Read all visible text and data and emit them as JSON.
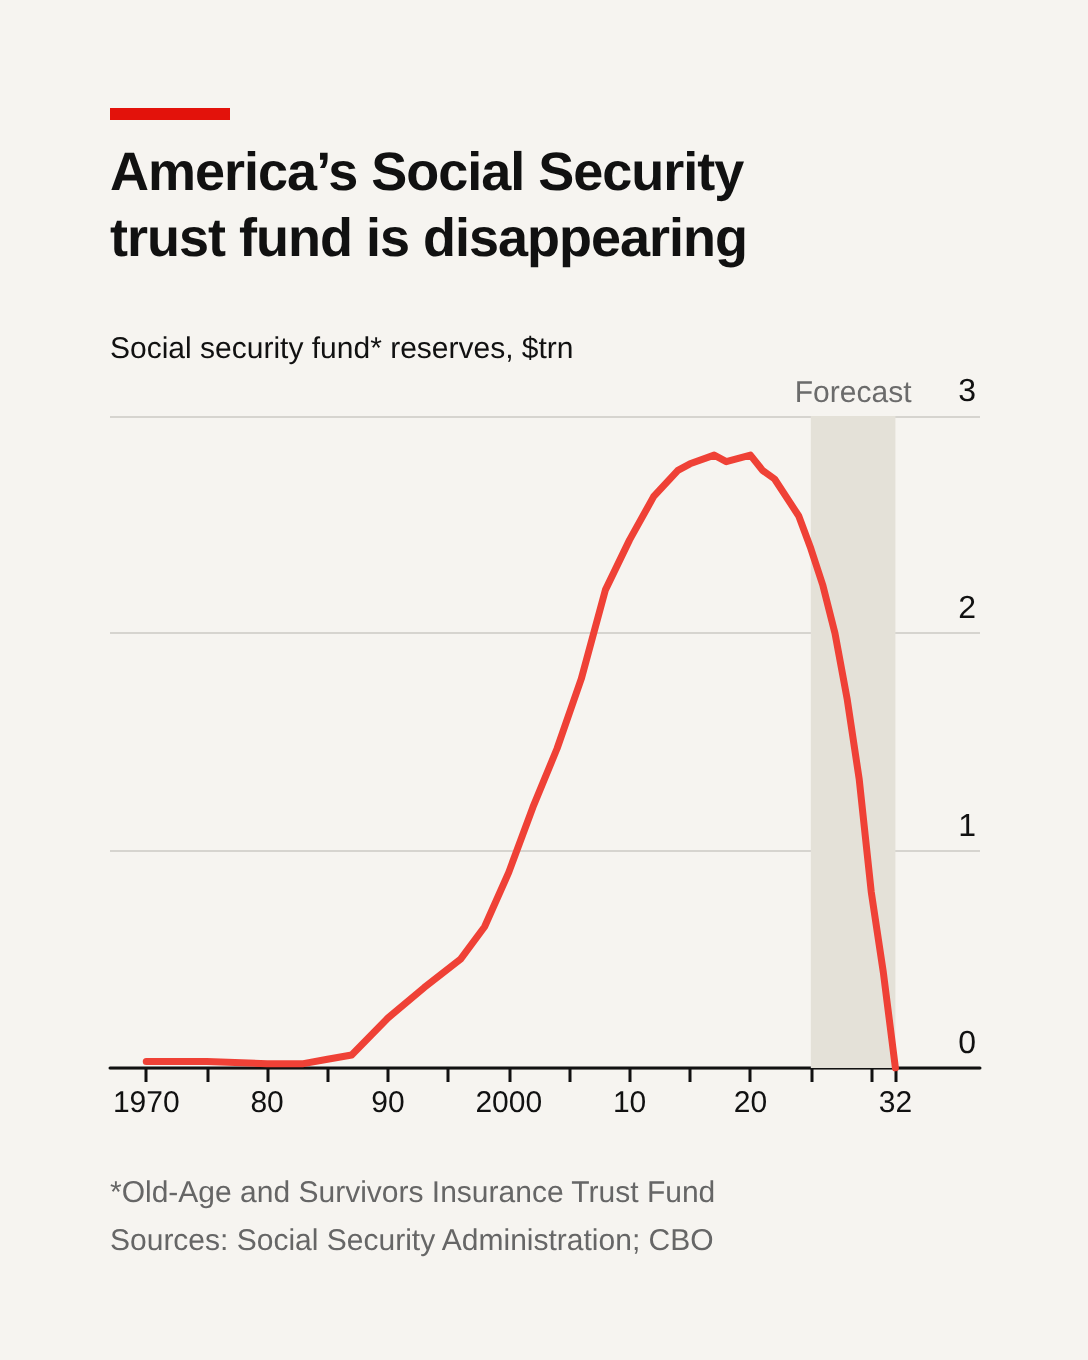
{
  "chart_data": {
    "type": "line",
    "title": "America’s Social Security trust fund is disappearing",
    "ylabel": "Social security fund* reserves, $trn",
    "annotations": [
      "*Old-Age and Survivors Insurance Trust Fund",
      "Sources: Social Security Administration; CBO"
    ],
    "x": [
      1970,
      1975,
      1980,
      1983,
      1985,
      1987,
      1990,
      1993,
      1996,
      1998,
      2000,
      2002,
      2004,
      2006,
      2008,
      2010,
      2012,
      2014,
      2015,
      2017,
      2018,
      2020,
      2021,
      2022,
      2024,
      2025,
      2026,
      2027,
      2028,
      2029,
      2030,
      2031,
      2032
    ],
    "series": [
      {
        "color": "#ef4136",
        "values": [
          0.03,
          0.03,
          0.02,
          0.02,
          0.04,
          0.06,
          0.23,
          0.37,
          0.5,
          0.65,
          0.9,
          1.2,
          1.47,
          1.79,
          2.2,
          2.43,
          2.63,
          2.75,
          2.78,
          2.82,
          2.79,
          2.82,
          2.75,
          2.71,
          2.54,
          2.39,
          2.22,
          2.0,
          1.7,
          1.33,
          0.81,
          0.44,
          0
        ]
      }
    ],
    "xlim": [
      1967,
      2039
    ],
    "xticks": [
      1970,
      {
        "value": 1975,
        "label": null
      },
      {
        "value": 1980,
        "label": "80"
      },
      {
        "value": 1985,
        "label": null
      },
      {
        "value": 1990,
        "label": "90"
      },
      {
        "value": 1995,
        "label": null
      },
      2000,
      {
        "value": 2005,
        "label": null
      },
      {
        "value": 2010,
        "label": "10"
      },
      {
        "value": 2015,
        "label": null
      },
      {
        "value": 2020,
        "label": "20"
      },
      {
        "value": 2025,
        "label": null
      },
      {
        "value": 2030,
        "label": null
      },
      {
        "value": 2032,
        "label": "32"
      }
    ],
    "ylim": [
      0,
      3
    ],
    "yticks": [
      0,
      1,
      2,
      3
    ],
    "grid": "y",
    "bands": [
      {
        "axis": "x",
        "from": 2025,
        "to": 2032,
        "label": "Forecast",
        "color": "#e4e1d8"
      }
    ]
  }
}
